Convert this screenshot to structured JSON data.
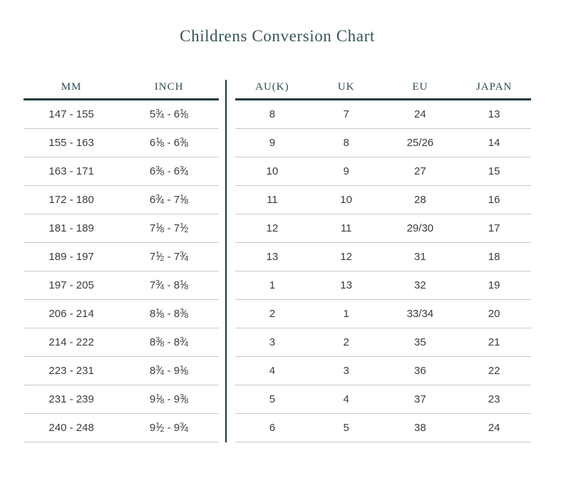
{
  "title": "Childrens Conversion Chart",
  "colors": {
    "accent_line": "#1c393e",
    "title_text": "#35545a",
    "header_text": "#2d4b51",
    "body_text": "#3b3b3b",
    "row_separator": "#c9c9c9"
  },
  "range_separator": "-",
  "tables": {
    "left": {
      "headers": [
        "MM",
        "INCH"
      ]
    },
    "right": {
      "headers": [
        "AU(K)",
        "UK",
        "EU",
        "JAPAN"
      ]
    }
  },
  "rows": [
    {
      "mm_from": "147",
      "mm_to": "155",
      "inch_from": {
        "whole": "5",
        "num": "3",
        "den": "4"
      },
      "inch_to": {
        "whole": "6",
        "num": "1",
        "den": "8"
      },
      "au": "8",
      "uk": "7",
      "eu": "24",
      "japan": "13"
    },
    {
      "mm_from": "155",
      "mm_to": "163",
      "inch_from": {
        "whole": "6",
        "num": "1",
        "den": "8"
      },
      "inch_to": {
        "whole": "6",
        "num": "3",
        "den": "8"
      },
      "au": "9",
      "uk": "8",
      "eu": "25/26",
      "japan": "14"
    },
    {
      "mm_from": "163",
      "mm_to": "171",
      "inch_from": {
        "whole": "6",
        "num": "3",
        "den": "8"
      },
      "inch_to": {
        "whole": "6",
        "num": "3",
        "den": "4"
      },
      "au": "10",
      "uk": "9",
      "eu": "27",
      "japan": "15"
    },
    {
      "mm_from": "172",
      "mm_to": "180",
      "inch_from": {
        "whole": "6",
        "num": "3",
        "den": "4"
      },
      "inch_to": {
        "whole": "7",
        "num": "1",
        "den": "8"
      },
      "au": "11",
      "uk": "10",
      "eu": "28",
      "japan": "16"
    },
    {
      "mm_from": "181",
      "mm_to": "189",
      "inch_from": {
        "whole": "7",
        "num": "1",
        "den": "8"
      },
      "inch_to": {
        "whole": "7",
        "num": "1",
        "den": "2"
      },
      "au": "12",
      "uk": "11",
      "eu": "29/30",
      "japan": "17"
    },
    {
      "mm_from": "189",
      "mm_to": "197",
      "inch_from": {
        "whole": "7",
        "num": "1",
        "den": "2"
      },
      "inch_to": {
        "whole": "7",
        "num": "3",
        "den": "4"
      },
      "au": "13",
      "uk": "12",
      "eu": "31",
      "japan": "18"
    },
    {
      "mm_from": "197",
      "mm_to": "205",
      "inch_from": {
        "whole": "7",
        "num": "3",
        "den": "4"
      },
      "inch_to": {
        "whole": "8",
        "num": "1",
        "den": "8"
      },
      "au": "1",
      "uk": "13",
      "eu": "32",
      "japan": "19"
    },
    {
      "mm_from": "206",
      "mm_to": "214",
      "inch_from": {
        "whole": "8",
        "num": "1",
        "den": "8"
      },
      "inch_to": {
        "whole": "8",
        "num": "3",
        "den": "8"
      },
      "au": "2",
      "uk": "1",
      "eu": "33/34",
      "japan": "20"
    },
    {
      "mm_from": "214",
      "mm_to": "222",
      "inch_from": {
        "whole": "8",
        "num": "3",
        "den": "8"
      },
      "inch_to": {
        "whole": "8",
        "num": "3",
        "den": "4"
      },
      "au": "3",
      "uk": "2",
      "eu": "35",
      "japan": "21"
    },
    {
      "mm_from": "223",
      "mm_to": "231",
      "inch_from": {
        "whole": "8",
        "num": "3",
        "den": "4"
      },
      "inch_to": {
        "whole": "9",
        "num": "1",
        "den": "8"
      },
      "au": "4",
      "uk": "3",
      "eu": "36",
      "japan": "22"
    },
    {
      "mm_from": "231",
      "mm_to": "239",
      "inch_from": {
        "whole": "9",
        "num": "1",
        "den": "8"
      },
      "inch_to": {
        "whole": "9",
        "num": "3",
        "den": "8"
      },
      "au": "5",
      "uk": "4",
      "eu": "37",
      "japan": "23"
    },
    {
      "mm_from": "240",
      "mm_to": "248",
      "inch_from": {
        "whole": "9",
        "num": "1",
        "den": "2"
      },
      "inch_to": {
        "whole": "9",
        "num": "3",
        "den": "4"
      },
      "au": "6",
      "uk": "5",
      "eu": "38",
      "japan": "24"
    }
  ]
}
